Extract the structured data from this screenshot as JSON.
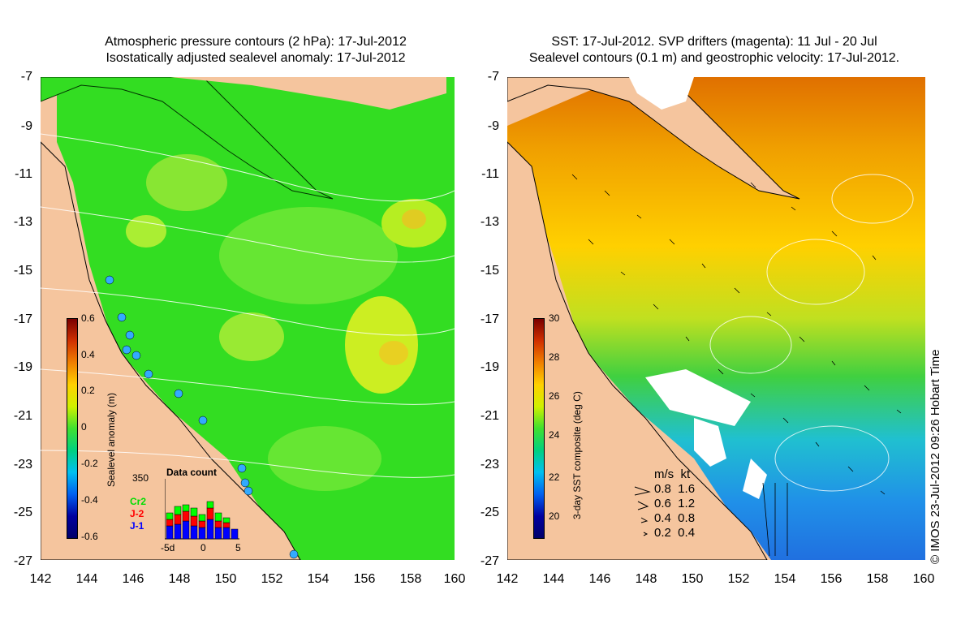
{
  "left": {
    "title_line1": "Atmospheric pressure contours (2 hPa): 17-Jul-2012",
    "title_line2": "Isostatically adjusted sealevel anomaly: 17-Jul-2012",
    "colorbar": {
      "title": "Sealevel anomaly (m)",
      "labels": [
        "0.6",
        "0.4",
        "0.2",
        "0",
        "-0.2",
        "-0.4",
        "-0.6"
      ]
    },
    "data_count": {
      "title": "Data count",
      "ymax": "350",
      "x_labels": [
        "-5d",
        "0",
        "5"
      ],
      "legend": [
        "Cr2",
        "J-2",
        "J-1"
      ],
      "colors": [
        "#00ff00",
        "#ff0000",
        "#0000ff"
      ]
    }
  },
  "right": {
    "title_line1": "SST: 17-Jul-2012. SVP drifters (magenta): 11 Jul - 20 Jul",
    "title_line2": "Sealevel contours (0.1 m) and geostrophic velocity: 17-Jul-2012.",
    "colorbar": {
      "title": "3-day SST composite (deg C)",
      "labels": [
        "30",
        "28",
        "26",
        "24",
        "22",
        "20"
      ]
    },
    "speed_legend": {
      "header": "m/s  kt",
      "rows": [
        "0.8  1.6",
        "0.6  1.2",
        "0.4  0.8",
        "0.2  0.4"
      ]
    }
  },
  "axes": {
    "y_labels": [
      "-7",
      "-9",
      "-11",
      "-13",
      "-15",
      "-17",
      "-19",
      "-21",
      "-23",
      "-25",
      "-27"
    ],
    "x_labels": [
      "142",
      "144",
      "146",
      "148",
      "150",
      "152",
      "154",
      "156",
      "158",
      "160"
    ]
  },
  "copyright": "© IMOS 23-Jul-2012 09:26 Hobart Time",
  "colors": {
    "land": "#f5c59e",
    "ocean_green": "#22cc22"
  }
}
